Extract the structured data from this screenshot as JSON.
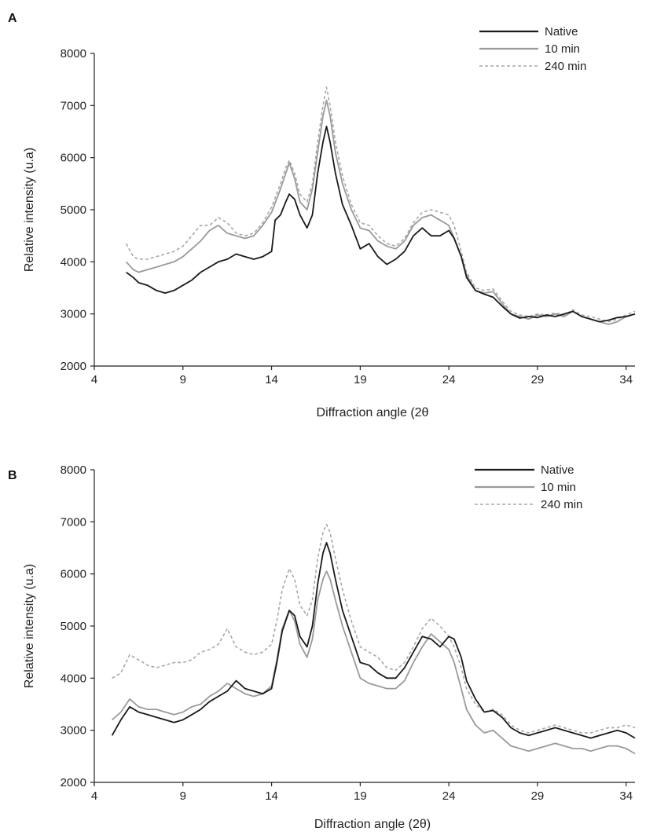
{
  "chart_data": [
    {
      "type": "line",
      "panel_label": "A",
      "xlabel": "Diffraction angle (2θ",
      "ylabel": "Relative intensity (u.a)",
      "xlim": [
        4,
        34.5
      ],
      "ylim": [
        2000,
        8000
      ],
      "xticks": [
        4,
        9,
        14,
        19,
        24,
        29,
        34
      ],
      "yticks": [
        2000,
        3000,
        4000,
        5000,
        6000,
        7000,
        8000
      ],
      "legend_position": "top-right",
      "series": [
        {
          "name": "Native",
          "color": "#1a1a1a",
          "dash": "solid",
          "x": [
            5.8,
            6.2,
            6.5,
            7.0,
            7.5,
            8.0,
            8.5,
            9.0,
            9.5,
            10.0,
            10.5,
            11.0,
            11.5,
            12.0,
            12.5,
            13.0,
            13.5,
            14.0,
            14.2,
            14.5,
            14.8,
            15.0,
            15.3,
            15.6,
            16.0,
            16.3,
            16.6,
            16.9,
            17.1,
            17.3,
            17.6,
            18.0,
            18.5,
            19.0,
            19.5,
            20.0,
            20.5,
            21.0,
            21.5,
            22.0,
            22.5,
            23.0,
            23.5,
            24.0,
            24.3,
            24.7,
            25.0,
            25.5,
            26.0,
            26.5,
            27.0,
            27.5,
            28.0,
            28.5,
            29.0,
            29.5,
            30.0,
            30.5,
            31.0,
            31.5,
            32.0,
            32.5,
            33.0,
            33.5,
            34.0,
            34.5
          ],
          "y": [
            3800,
            3700,
            3600,
            3550,
            3450,
            3400,
            3450,
            3550,
            3650,
            3800,
            3900,
            4000,
            4050,
            4150,
            4100,
            4050,
            4100,
            4200,
            4800,
            4900,
            5150,
            5300,
            5200,
            4900,
            4650,
            4900,
            5700,
            6300,
            6600,
            6300,
            5700,
            5100,
            4700,
            4250,
            4350,
            4100,
            3950,
            4050,
            4200,
            4500,
            4650,
            4500,
            4500,
            4600,
            4450,
            4100,
            3700,
            3450,
            3380,
            3320,
            3150,
            3000,
            2920,
            2950,
            2930,
            2980,
            2950,
            3000,
            3050,
            2950,
            2900,
            2850,
            2880,
            2930,
            2950,
            3000
          ]
        },
        {
          "name": "10 min",
          "color": "#9a9a9a",
          "dash": "solid",
          "x": [
            5.8,
            6.2,
            6.5,
            7.0,
            7.5,
            8.0,
            8.5,
            9.0,
            9.5,
            10.0,
            10.5,
            11.0,
            11.5,
            12.0,
            12.5,
            13.0,
            13.5,
            14.0,
            14.5,
            14.8,
            15.0,
            15.3,
            15.6,
            16.0,
            16.3,
            16.6,
            16.9,
            17.1,
            17.3,
            17.6,
            18.0,
            18.5,
            19.0,
            19.5,
            20.0,
            20.5,
            21.0,
            21.5,
            22.0,
            22.5,
            23.0,
            23.5,
            24.0,
            24.3,
            24.7,
            25.0,
            25.5,
            26.0,
            26.5,
            27.0,
            27.5,
            28.0,
            28.5,
            29.0,
            29.5,
            30.0,
            30.5,
            31.0,
            31.5,
            32.0,
            32.5,
            33.0,
            33.5,
            34.0,
            34.5
          ],
          "y": [
            4000,
            3850,
            3800,
            3850,
            3900,
            3950,
            4000,
            4100,
            4250,
            4400,
            4600,
            4700,
            4550,
            4500,
            4450,
            4500,
            4700,
            4950,
            5400,
            5700,
            5900,
            5600,
            5150,
            5000,
            5400,
            6100,
            6800,
            7100,
            6800,
            6100,
            5500,
            5000,
            4650,
            4600,
            4400,
            4300,
            4250,
            4400,
            4700,
            4850,
            4900,
            4800,
            4700,
            4450,
            4100,
            3750,
            3450,
            3400,
            3430,
            3200,
            3000,
            2950,
            2900,
            2980,
            2950,
            3000,
            2950,
            3050,
            2950,
            2900,
            2850,
            2800,
            2850,
            2950,
            3000
          ]
        },
        {
          "name": "240 min",
          "color": "#a8a8a8",
          "dash": "dashed",
          "x": [
            5.8,
            6.2,
            6.5,
            7.0,
            7.5,
            8.0,
            8.5,
            9.0,
            9.5,
            10.0,
            10.5,
            11.0,
            11.5,
            12.0,
            12.5,
            13.0,
            13.5,
            14.0,
            14.5,
            14.8,
            15.0,
            15.3,
            15.6,
            16.0,
            16.3,
            16.6,
            16.9,
            17.1,
            17.3,
            17.6,
            18.0,
            18.5,
            19.0,
            19.5,
            20.0,
            20.5,
            21.0,
            21.5,
            22.0,
            22.5,
            23.0,
            23.5,
            24.0,
            24.3,
            24.7,
            25.0,
            25.5,
            26.0,
            26.5,
            27.0,
            27.5,
            28.0,
            28.5,
            29.0,
            29.5,
            30.0,
            30.5,
            31.0,
            31.5,
            32.0,
            32.5,
            33.0,
            33.5,
            34.0,
            34.5
          ],
          "y": [
            4350,
            4100,
            4050,
            4050,
            4100,
            4150,
            4200,
            4300,
            4500,
            4700,
            4700,
            4850,
            4750,
            4550,
            4500,
            4550,
            4750,
            5050,
            5500,
            5800,
            5950,
            5700,
            5300,
            5150,
            5500,
            6300,
            7000,
            7350,
            7000,
            6300,
            5650,
            5100,
            4750,
            4700,
            4500,
            4350,
            4300,
            4450,
            4750,
            4950,
            5000,
            4950,
            4900,
            4700,
            4200,
            3800,
            3500,
            3450,
            3480,
            3250,
            3050,
            2980,
            2950,
            3000,
            2980,
            3020,
            2980,
            3080,
            2980,
            2950,
            2900,
            2850,
            2900,
            2980,
            3050
          ]
        }
      ]
    },
    {
      "type": "line",
      "panel_label": "B",
      "xlabel": "Diffraction angle (2θ)",
      "ylabel": "Relative intensity (u.a)",
      "xlim": [
        4,
        34.5
      ],
      "ylim": [
        2000,
        8000
      ],
      "xticks": [
        4,
        9,
        14,
        19,
        24,
        29,
        34
      ],
      "yticks": [
        2000,
        3000,
        4000,
        5000,
        6000,
        7000,
        8000
      ],
      "legend_position": "top-right",
      "series": [
        {
          "name": "Native",
          "color": "#1a1a1a",
          "dash": "solid",
          "x": [
            5.0,
            5.5,
            6.0,
            6.5,
            7.0,
            7.5,
            8.0,
            8.5,
            9.0,
            9.5,
            10.0,
            10.5,
            11.0,
            11.5,
            12.0,
            12.5,
            13.0,
            13.5,
            14.0,
            14.3,
            14.6,
            15.0,
            15.3,
            15.6,
            16.0,
            16.3,
            16.6,
            16.9,
            17.1,
            17.3,
            17.6,
            18.0,
            18.5,
            19.0,
            19.5,
            20.0,
            20.5,
            21.0,
            21.5,
            22.0,
            22.5,
            23.0,
            23.5,
            24.0,
            24.3,
            24.7,
            25.0,
            25.5,
            26.0,
            26.5,
            27.0,
            27.5,
            28.0,
            28.5,
            29.0,
            29.5,
            30.0,
            30.5,
            31.0,
            31.5,
            32.0,
            32.5,
            33.0,
            33.5,
            34.0,
            34.5
          ],
          "y": [
            2900,
            3200,
            3450,
            3350,
            3300,
            3250,
            3200,
            3150,
            3200,
            3300,
            3400,
            3550,
            3650,
            3750,
            3950,
            3800,
            3750,
            3700,
            3800,
            4300,
            4900,
            5300,
            5200,
            4800,
            4600,
            5000,
            5800,
            6400,
            6600,
            6400,
            5900,
            5300,
            4800,
            4300,
            4250,
            4100,
            4000,
            4000,
            4200,
            4500,
            4800,
            4750,
            4600,
            4800,
            4750,
            4400,
            3950,
            3600,
            3350,
            3380,
            3250,
            3050,
            2950,
            2900,
            2950,
            3000,
            3050,
            3000,
            2950,
            2900,
            2850,
            2900,
            2950,
            3000,
            2950,
            2850
          ]
        },
        {
          "name": "10 min",
          "color": "#9a9a9a",
          "dash": "solid",
          "x": [
            5.0,
            5.5,
            6.0,
            6.5,
            7.0,
            7.5,
            8.0,
            8.5,
            9.0,
            9.5,
            10.0,
            10.5,
            11.0,
            11.5,
            12.0,
            12.5,
            13.0,
            13.5,
            14.0,
            14.3,
            14.6,
            15.0,
            15.3,
            15.6,
            16.0,
            16.3,
            16.6,
            16.9,
            17.1,
            17.3,
            17.6,
            18.0,
            18.5,
            19.0,
            19.5,
            20.0,
            20.5,
            21.0,
            21.5,
            22.0,
            22.5,
            23.0,
            23.5,
            24.0,
            24.3,
            24.7,
            25.0,
            25.5,
            26.0,
            26.5,
            27.0,
            27.5,
            28.0,
            28.5,
            29.0,
            29.5,
            30.0,
            30.5,
            31.0,
            31.5,
            32.0,
            32.5,
            33.0,
            33.5,
            34.0,
            34.5
          ],
          "y": [
            3200,
            3350,
            3600,
            3450,
            3400,
            3400,
            3350,
            3300,
            3350,
            3450,
            3500,
            3650,
            3750,
            3900,
            3800,
            3700,
            3650,
            3700,
            3850,
            4350,
            4950,
            5300,
            5100,
            4650,
            4400,
            4750,
            5500,
            5900,
            6050,
            5900,
            5500,
            5000,
            4500,
            4000,
            3900,
            3850,
            3800,
            3800,
            3950,
            4300,
            4600,
            4850,
            4700,
            4550,
            4300,
            3800,
            3400,
            3100,
            2950,
            3000,
            2850,
            2700,
            2650,
            2600,
            2650,
            2700,
            2750,
            2700,
            2650,
            2650,
            2600,
            2650,
            2700,
            2700,
            2650,
            2550
          ]
        },
        {
          "name": "240 min",
          "color": "#a8a8a8",
          "dash": "dashed",
          "x": [
            5.0,
            5.5,
            6.0,
            6.5,
            7.0,
            7.5,
            8.0,
            8.5,
            9.0,
            9.5,
            10.0,
            10.5,
            11.0,
            11.5,
            12.0,
            12.5,
            13.0,
            13.5,
            14.0,
            14.3,
            14.6,
            15.0,
            15.3,
            15.6,
            16.0,
            16.3,
            16.6,
            16.9,
            17.1,
            17.3,
            17.6,
            18.0,
            18.5,
            19.0,
            19.5,
            20.0,
            20.5,
            21.0,
            21.5,
            22.0,
            22.5,
            23.0,
            23.5,
            24.0,
            24.3,
            24.7,
            25.0,
            25.5,
            26.0,
            26.5,
            27.0,
            27.5,
            28.0,
            28.5,
            29.0,
            29.5,
            30.0,
            30.5,
            31.0,
            31.5,
            32.0,
            32.5,
            33.0,
            33.5,
            34.0,
            34.5
          ],
          "y": [
            4000,
            4100,
            4450,
            4350,
            4250,
            4200,
            4250,
            4300,
            4300,
            4350,
            4500,
            4550,
            4650,
            4950,
            4600,
            4500,
            4450,
            4500,
            4650,
            5100,
            5700,
            6100,
            5900,
            5400,
            5200,
            5500,
            6300,
            6800,
            6950,
            6800,
            6300,
            5700,
            5100,
            4600,
            4500,
            4400,
            4200,
            4150,
            4300,
            4600,
            4950,
            5150,
            5000,
            4800,
            4600,
            4200,
            3800,
            3500,
            3350,
            3400,
            3300,
            3100,
            3000,
            2950,
            3000,
            3050,
            3100,
            3050,
            3000,
            2950,
            2950,
            3000,
            3050,
            3050,
            3100,
            3050
          ]
        }
      ]
    }
  ]
}
